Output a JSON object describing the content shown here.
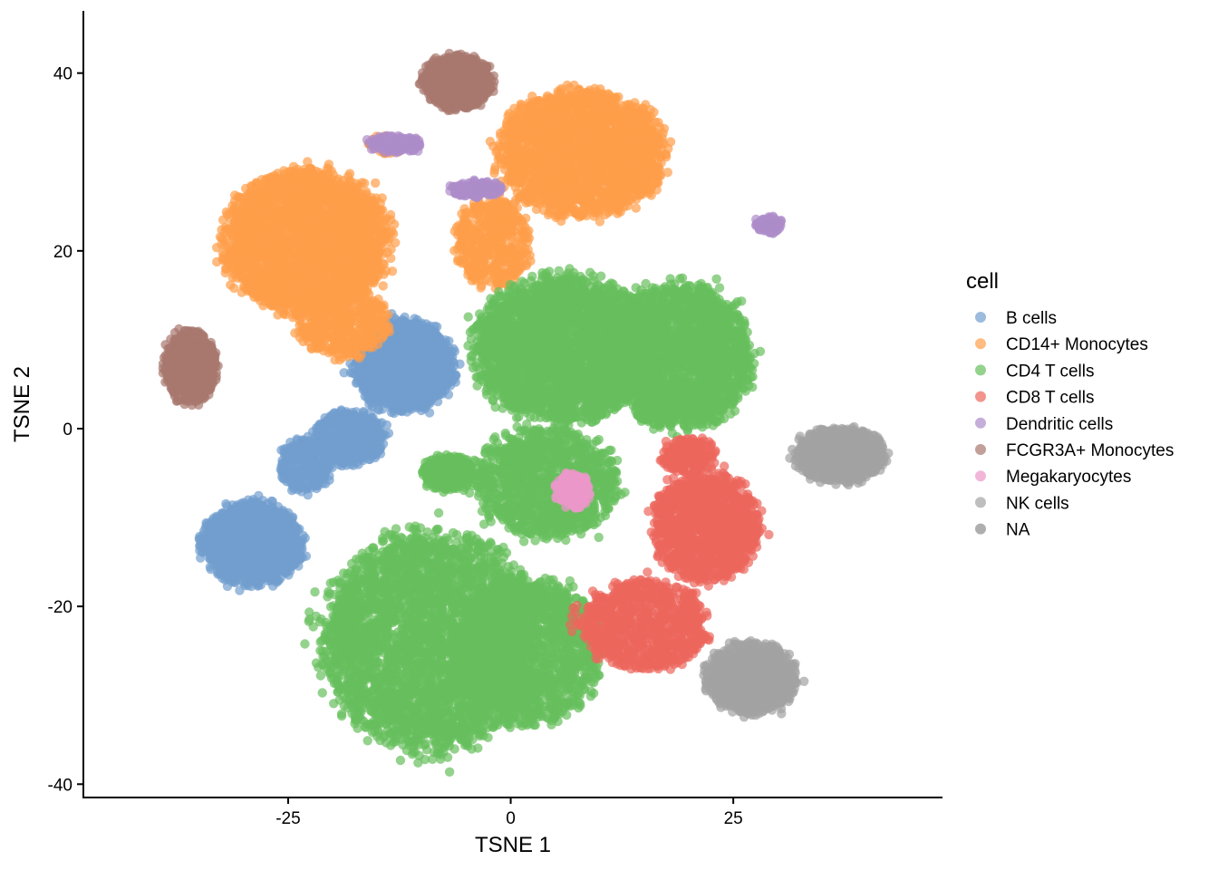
{
  "chart_data": {
    "type": "scatter",
    "title": "",
    "xlabel": "TSNE 1",
    "ylabel": "TSNE 2",
    "xlim": [
      -48,
      48.5
    ],
    "ylim": [
      -41.5,
      47
    ],
    "x_ticks": [
      -25,
      0,
      25
    ],
    "y_ticks": [
      -40,
      -20,
      0,
      20,
      40
    ],
    "x_tick_labels": [
      "-25",
      "0",
      "25"
    ],
    "y_tick_labels": [
      "-40",
      "-20",
      "0",
      "20",
      "40"
    ],
    "grid": false,
    "legend_title": "cell",
    "legend_position": "right",
    "series": [
      {
        "name": "B cells",
        "color": "#729ece",
        "clusters": [
          [
            -12,
            7,
            5.5,
            5,
            1500
          ],
          [
            -18,
            -1,
            4,
            3,
            500
          ],
          [
            -29,
            -13,
            5.5,
            4.5,
            1400
          ],
          [
            -23,
            -4,
            3,
            3,
            300
          ]
        ]
      },
      {
        "name": "CD14+ Monocytes",
        "color": "#ff9e4a",
        "clusters": [
          [
            -23,
            21,
            9,
            8,
            2600
          ],
          [
            -19,
            12,
            5,
            4,
            500
          ],
          [
            8,
            31,
            9,
            7,
            2200
          ],
          [
            -2,
            21,
            4,
            5,
            500
          ],
          [
            -14,
            32,
            2,
            1,
            80
          ]
        ]
      },
      {
        "name": "CD4 T cells",
        "color": "#67bf5c",
        "clusters": [
          [
            -9,
            -24,
            12,
            12,
            3500
          ],
          [
            2,
            -25,
            8,
            8,
            1500
          ],
          [
            6,
            9,
            10,
            8,
            2600
          ],
          [
            19,
            8,
            8,
            8,
            2000
          ],
          [
            4,
            -6,
            8,
            6,
            1200
          ],
          [
            -7,
            -5,
            3,
            2,
            300
          ]
        ]
      },
      {
        "name": "CD8 T cells",
        "color": "#ed665d",
        "clusters": [
          [
            22,
            -11,
            6,
            6,
            1200
          ],
          [
            15,
            -22,
            7,
            5,
            900
          ],
          [
            20,
            -3,
            3,
            2,
            200
          ]
        ]
      },
      {
        "name": "Dendritic cells",
        "color": "#ad8bc9",
        "clusters": [
          [
            -13,
            32,
            3,
            1,
            150
          ],
          [
            -4,
            27,
            3,
            1,
            120
          ],
          [
            29,
            23,
            1.5,
            1,
            80
          ]
        ]
      },
      {
        "name": "FCGR3A+ Monocytes",
        "color": "#a8786e",
        "clusters": [
          [
            -6,
            39,
            4,
            3,
            700
          ],
          [
            -36,
            7,
            3,
            4,
            600
          ]
        ]
      },
      {
        "name": "Megakaryocytes",
        "color": "#ed97ca",
        "clusters": [
          [
            7,
            -7,
            2,
            2,
            150
          ]
        ]
      },
      {
        "name": "NK cells",
        "color": "#a2a2a2",
        "clusters": [
          [
            37,
            -3,
            5,
            3,
            900
          ],
          [
            27,
            -28,
            5,
            4,
            900
          ]
        ]
      },
      {
        "name": "NA",
        "color": "#8c8c8c",
        "clusters": []
      }
    ]
  }
}
